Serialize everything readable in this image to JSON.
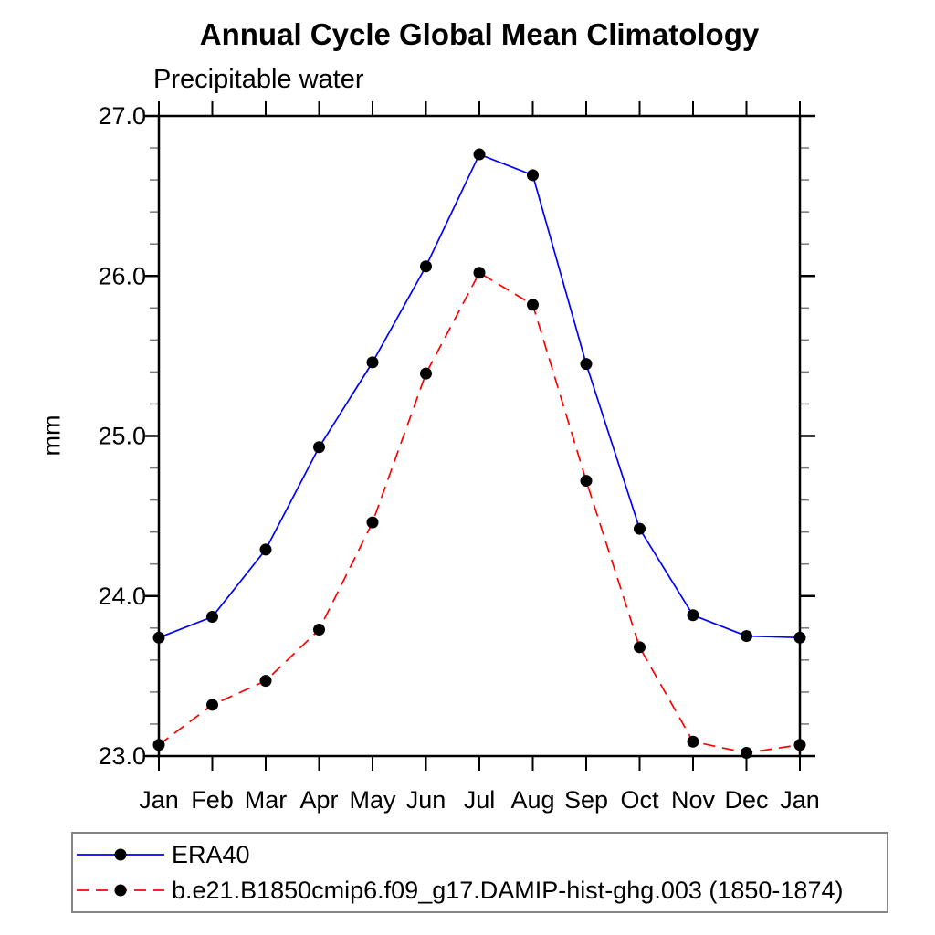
{
  "chart_data": {
    "type": "line",
    "title": "Annual Cycle Global Mean Climatology",
    "subtitle": "Precipitable water",
    "xlabel": "",
    "ylabel": "mm",
    "categories": [
      "Jan",
      "Feb",
      "Mar",
      "Apr",
      "May",
      "Jun",
      "Jul",
      "Aug",
      "Sep",
      "Oct",
      "Nov",
      "Dec",
      "Jan"
    ],
    "ylim": [
      23.0,
      27.0
    ],
    "ytick_values": [
      23.0,
      24.0,
      25.0,
      26.0,
      27.0
    ],
    "ytick_labels": [
      "23.0",
      "24.0",
      "25.0",
      "26.0",
      "27.0"
    ],
    "y_minor_step": 0.2,
    "grid": false,
    "legend_position": "bottom-left-box",
    "axis_color": "#000000",
    "minor_tick_color": "#777777",
    "marker_color": "#000000",
    "series": [
      {
        "name": "ERA40",
        "color": "#0000ff",
        "line_style": "solid",
        "marker": "filled-circle",
        "values": [
          23.74,
          23.87,
          24.29,
          24.93,
          25.46,
          26.06,
          26.76,
          26.63,
          25.45,
          24.42,
          23.88,
          23.75,
          23.74
        ]
      },
      {
        "name": "b.e21.B1850cmip6.f09_g17.DAMIP-hist-ghg.003 (1850-1874)",
        "color": "#ff0000",
        "line_style": "dashed",
        "marker": "filled-circle",
        "values": [
          23.07,
          23.32,
          23.47,
          23.79,
          24.46,
          25.39,
          26.02,
          25.82,
          24.72,
          23.68,
          23.09,
          23.02,
          23.07
        ]
      }
    ]
  }
}
